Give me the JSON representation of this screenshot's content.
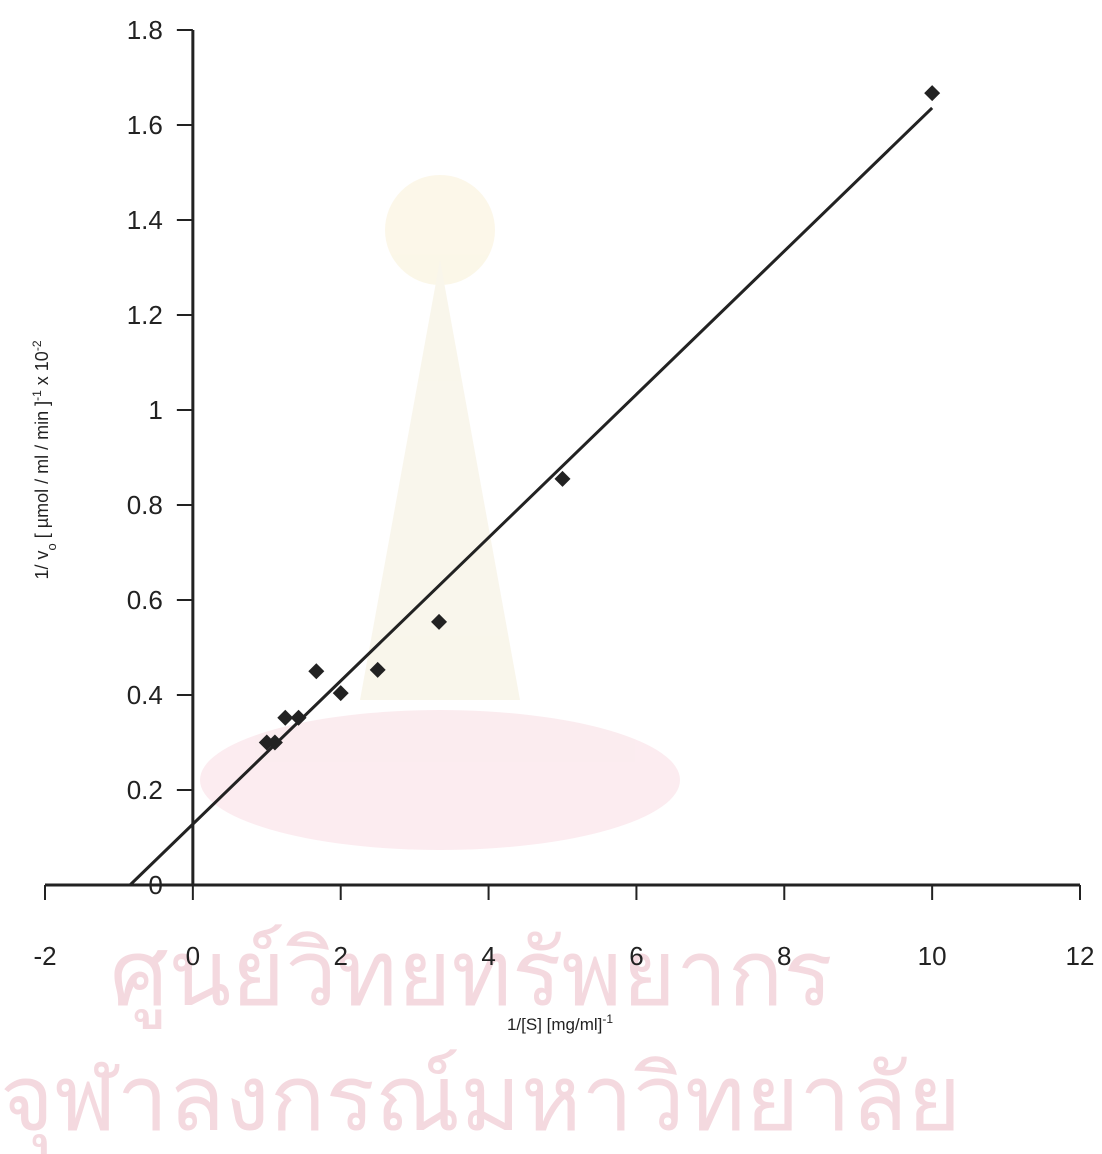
{
  "chart_data": {
    "type": "scatter",
    "x_label": [
      "1/[S]  [mg/ml]",
      "-1"
    ],
    "y_label": [
      "1/ v",
      "o",
      " [ µmol / ml / min ]",
      "-1",
      " x 10",
      "-2"
    ],
    "x": [
      10,
      5,
      3.33,
      2.5,
      2,
      1.67,
      1.43,
      1.25,
      1.11,
      1
    ],
    "series": [
      {
        "color": "#222222",
        "values": [
          1.667,
          0.855,
          0.554,
          0.453,
          0.404,
          0.45,
          0.352,
          0.352,
          0.3,
          0.3
        ]
      }
    ],
    "trendline": {
      "color": "#222222",
      "x": [
        -0.85,
        10
      ],
      "values": [
        0,
        1.636
      ]
    },
    "xlim": [
      -2,
      12
    ],
    "xticks": [
      -2,
      0,
      2,
      4,
      6,
      8,
      10,
      12
    ],
    "ylim": [
      0,
      1.8
    ],
    "yticks": [
      0,
      0.2,
      0.4,
      0.6,
      0.8,
      1,
      1.2,
      1.4,
      1.6,
      1.8
    ],
    "grid": false
  },
  "watermark": {
    "line1": "ศูนย์วิทยทรัพยากร",
    "line2": "จุฬาลงกรณ์มหาวิทยาลัย"
  }
}
